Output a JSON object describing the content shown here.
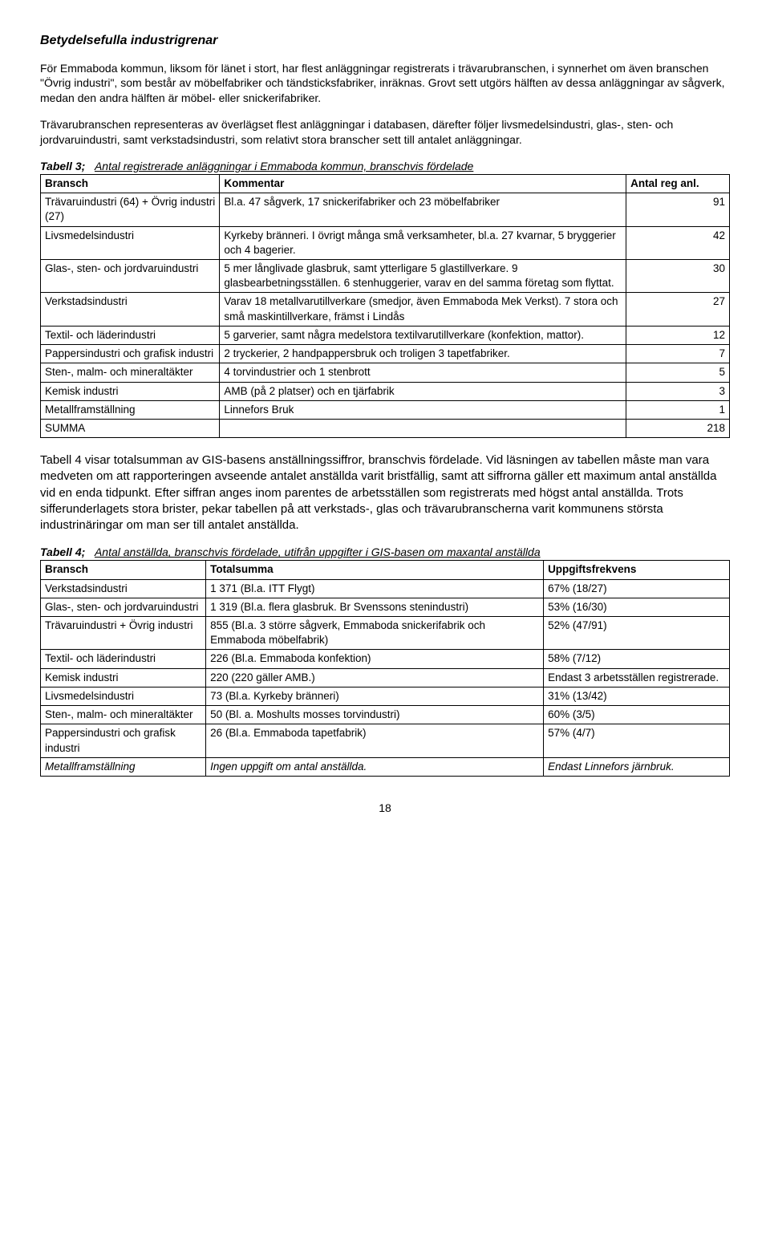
{
  "heading": "Betydelsefulla industrigrenar",
  "para1": "För Emmaboda kommun, liksom för länet i stort, har flest anläggningar registrerats i trävarubranschen, i synnerhet om även branschen \"Övrig industri\", som består av möbelfabriker och tändsticksfabriker, inräknas. Grovt sett utgörs hälften av dessa anläggningar av sågverk, medan den andra hälften är möbel- eller snickerifabriker.",
  "para2": "Trävarubranschen representeras av överlägset flest anläggningar i databasen, därefter följer livsmedelsindustri, glas-, sten- och jordvaruindustri, samt verkstadsindustri, som relativt stora branscher sett till antalet anläggningar.",
  "table3": {
    "caption_label": "Tabell 3;",
    "caption_rest": "Antal registrerade anläggningar i Emmaboda kommun, branschvis  fördelade",
    "col1": "Bransch",
    "col2": "Kommentar",
    "col3": "Antal reg anl.",
    "rows": [
      {
        "c1": "Trävaruindustri  (64) + Övrig industri (27)",
        "c2": "Bl.a. 47 sågverk, 17 snickerifabriker och 23 möbelfabriker",
        "c3": "91"
      },
      {
        "c1": "Livsmedelsindustri",
        "c2": "Kyrkeby bränneri. I övrigt många små verksamheter, bl.a. 27 kvarnar, 5 bryggerier och 4 bagerier.",
        "c3": "42"
      },
      {
        "c1": "Glas-, sten- och jordvaruindustri",
        "c2": "5 mer långlivade glasbruk, samt ytterligare 5 glastillverkare. 9 glasbearbetningsställen. 6 stenhuggerier, varav en del samma företag som flyttat.",
        "c3": "30"
      },
      {
        "c1": "Verkstadsindustri",
        "c2": "Varav 18 metallvarutillverkare (smedjor, även Emmaboda Mek Verkst). 7 stora och små maskintillverkare, främst i Lindås",
        "c3": "27"
      },
      {
        "c1": "Textil- och läderindustri",
        "c2": "5 garverier, samt några medelstora textilvarutillverkare (konfektion, mattor).",
        "c3": "12"
      },
      {
        "c1": "Pappersindustri och grafisk industri",
        "c2": "2 tryckerier, 2 handpappersbruk och troligen 3 tapetfabriker.",
        "c3": "7"
      },
      {
        "c1": "Sten-, malm- och mineraltäkter",
        "c2": "4 torvindustrier och 1 stenbrott",
        "c3": "5"
      },
      {
        "c1": "Kemisk industri",
        "c2": "AMB (på 2 platser) och en tjärfabrik",
        "c3": "3"
      },
      {
        "c1": "Metallframställning",
        "c2": "Linnefors Bruk",
        "c3": "1"
      }
    ],
    "sum_label": "SUMMA",
    "sum_value": "218"
  },
  "para3": "Tabell 4 visar totalsumman av GIS-basens anställningssiffror, branschvis fördelade. Vid läsningen av tabellen måste man vara medveten om att rapporteringen avseende antalet anställda varit bristfällig, samt att siffrorna gäller ett maximum antal anställda vid en enda tidpunkt. Efter siffran anges inom parentes de arbetsställen som registrerats med högst antal anställda. Trots sifferunderlagets stora brister, pekar tabellen på att verkstads-, glas och trävarubranscherna varit kommunens största industrinäringar om man ser till antalet anställda.",
  "table4": {
    "caption_label": "Tabell 4;",
    "caption_rest": "Antal anställda, branschvis fördelade, utifrån uppgifter i GIS-basen om maxantal anställda",
    "col1": "Bransch",
    "col2": "Totalsumma",
    "col3": "Uppgiftsfrekvens",
    "rows": [
      {
        "c1": "Verkstadsindustri",
        "c2": "1 371 (Bl.a. ITT Flygt)",
        "c3": "67% (18/27)"
      },
      {
        "c1": "Glas-, sten- och jordvaruindustri",
        "c2": "1 319 (Bl.a. flera glasbruk. Br Svenssons stenindustri)",
        "c3": "53% (16/30)"
      },
      {
        "c1": "Trävaruindustri  + Övrig industri",
        "c2": "855 (Bl.a. 3 större sågverk, Emmaboda snickerifabrik och Emmaboda möbelfabrik)",
        "c3": "52% (47/91)"
      },
      {
        "c1": "Textil- och läderindustri",
        "c2": "226 (Bl.a. Emmaboda konfektion)",
        "c3": "58%  (7/12)"
      },
      {
        "c1": "Kemisk industri",
        "c2": "220 (220 gäller AMB.)",
        "c3": "Endast 3 arbetsställen registrerade."
      },
      {
        "c1": "Livsmedelsindustri",
        "c2": "73 (Bl.a. Kyrkeby bränneri)",
        "c3": "31% (13/42)"
      },
      {
        "c1": "Sten-, malm- och mineraltäkter",
        "c2": "50 (Bl. a. Moshults mosses torvindustri)",
        "c3": "60% (3/5)"
      },
      {
        "c1": "Pappersindustri och grafisk industri",
        "c2": "26 (Bl.a. Emmaboda tapetfabrik)",
        "c3": "57% (4/7)"
      },
      {
        "c1": "Metallframställning",
        "c2": "Ingen uppgift om antal anställda.",
        "c3": "Endast Linnefors järnbruk.",
        "italic": true
      }
    ]
  },
  "page_number": "18"
}
